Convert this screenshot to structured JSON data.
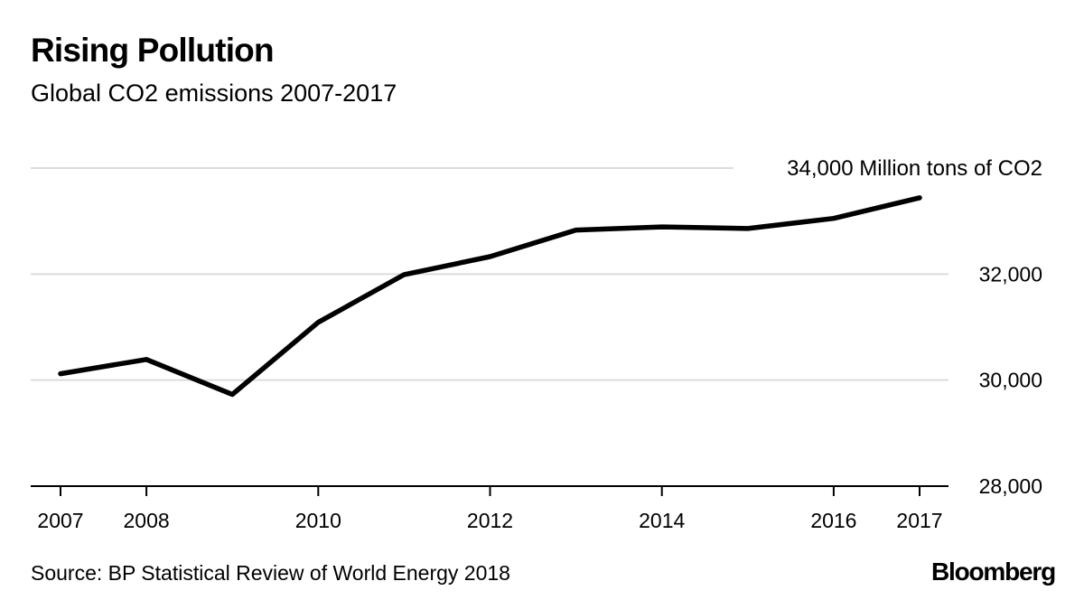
{
  "header": {
    "title": "Rising Pollution",
    "subtitle": "Global CO2 emissions 2007-2017"
  },
  "footer": {
    "source": "Source: BP Statistical Review of World Energy 2018",
    "brand": "Bloomberg"
  },
  "colors": {
    "line": "#000000",
    "gridline": "#dcdcdc",
    "axis": "#000000",
    "text": "#000000"
  },
  "chart_data": {
    "type": "line",
    "title": "Rising Pollution",
    "subtitle": "Global CO2 emissions 2007-2017",
    "xlabel": "",
    "ylabel": "Million tons of CO2",
    "x": [
      2007,
      2008,
      2009,
      2010,
      2011,
      2012,
      2013,
      2014,
      2015,
      2016,
      2017
    ],
    "series": [
      {
        "name": "Global CO2 emissions",
        "values": [
          30120,
          30390,
          29730,
          31090,
          31990,
          32330,
          32830,
          32890,
          32860,
          33050,
          33440
        ]
      }
    ],
    "xlim": [
      2007,
      2017
    ],
    "ylim": [
      28000,
      34000
    ],
    "x_ticks": [
      2007,
      2008,
      2010,
      2012,
      2014,
      2016,
      2017
    ],
    "x_tick_labels": [
      "2007",
      "2008",
      "2010",
      "2012",
      "2014",
      "2016",
      "2017"
    ],
    "y_ticks": [
      28000,
      30000,
      32000,
      34000
    ],
    "y_tick_labels": [
      "28,000",
      "30,000",
      "32,000",
      "34,000 Million tons of CO2"
    ],
    "y_axis_side": "right",
    "grid": true,
    "legend": "none",
    "source": "Source: BP Statistical Review of World Energy 2018"
  }
}
